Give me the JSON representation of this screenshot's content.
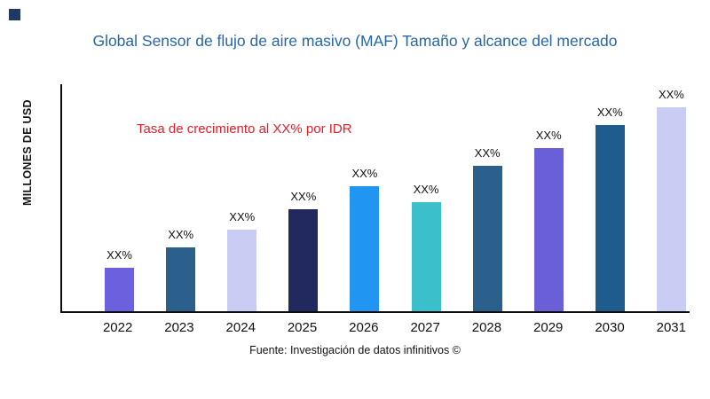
{
  "page": {
    "accent_color": "#2667A8",
    "annotation_color": "#EA1C24",
    "corner_square_color": "#1F3864"
  },
  "chart_data": {
    "type": "bar",
    "title": "Global Sensor de flujo de aire masivo (MAF) Tamaño y alcance del mercado",
    "ylabel": "MILLONES DE USD",
    "xlabel": "",
    "annotation": "Tasa de crecimiento al XX% por IDR",
    "source": "Fuente: Investigación de datos infinitivos ©",
    "categories": [
      "2022",
      "2023",
      "2024",
      "2025",
      "2026",
      "2027",
      "2028",
      "2029",
      "2030",
      "2031"
    ],
    "values": [
      19,
      28,
      36,
      45,
      55,
      48,
      64,
      72,
      82,
      90
    ],
    "bar_labels": [
      "XX%",
      "XX%",
      "XX%",
      "XX%",
      "XX%",
      "XX%",
      "XX%",
      "XX%",
      "XX%",
      "XX%"
    ],
    "bar_colors": [
      "#6B61DE",
      "#2B5F8C",
      "#C9CDF3",
      "#21295E",
      "#2095F2",
      "#3ABFCB",
      "#2B5F8C",
      "#6B5FD8",
      "#1D5C8C",
      "#C9CDF3"
    ],
    "ylim": [
      0,
      100
    ],
    "grid": false,
    "legend": "none"
  }
}
